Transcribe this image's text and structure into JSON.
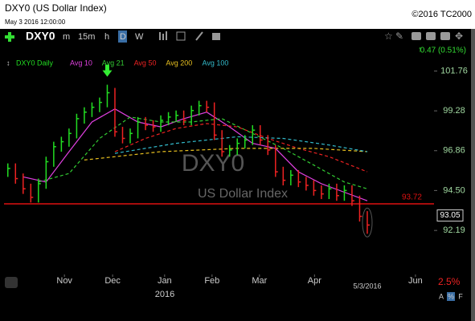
{
  "chart_data": {
    "type": "ohlc",
    "title": "DXY0 (US Dollar Index)",
    "copyright": "©2016 TC2000",
    "timestamp": "May 3 2016 12:00:00",
    "symbol": "DXY0",
    "timeframes": [
      "m",
      "15m",
      "h",
      "D",
      "W"
    ],
    "change": "0.47 (0.51%)",
    "watermark_symbol": "DXY0",
    "watermark_name": "US Dollar Index",
    "price_series": {
      "name": "DXY0 Daily",
      "up_color": "#22dd22",
      "down_color": "#ee2222",
      "high": [
        96.1,
        96.1,
        95.5,
        94.9,
        95.2,
        96.5,
        97.4,
        97.7,
        98.2,
        99.1,
        99.5,
        99.8,
        100.1,
        100.9,
        100.7,
        98.3,
        98.2,
        98.9,
        98.9,
        98.7,
        99.0,
        99.2,
        99.3,
        99.3,
        99.6,
        99.9,
        99.9,
        99.8,
        98.1,
        97.2,
        97.6,
        97.8,
        98.4,
        98.4,
        97.8,
        97.2,
        95.9,
        95.7,
        95.7,
        95.3,
        95.1,
        94.8,
        94.9,
        94.9,
        94.8,
        94.8,
        94.2,
        93.3
      ],
      "low": [
        95.3,
        94.9,
        94.3,
        93.8,
        93.8,
        94.6,
        95.9,
        96.8,
        97.1,
        97.6,
        98.5,
        98.9,
        99.2,
        99.5,
        97.7,
        97.3,
        97.3,
        97.6,
        98.1,
        98.0,
        98.0,
        98.4,
        98.6,
        98.4,
        98.4,
        99.0,
        99.2,
        97.5,
        96.5,
        96.5,
        96.6,
        97.0,
        97.2,
        97.2,
        96.6,
        95.3,
        94.8,
        94.8,
        94.7,
        94.5,
        94.2,
        94.0,
        94.0,
        93.9,
        93.9,
        93.6,
        92.7,
        92.0
      ],
      "close": [
        95.8,
        95.2,
        94.6,
        94.1,
        94.9,
        96.2,
        97.1,
        97.4,
        97.9,
        98.8,
        99.2,
        99.5,
        99.8,
        100.4,
        98.0,
        97.6,
        97.9,
        98.6,
        98.4,
        98.3,
        98.7,
        98.9,
        99.0,
        98.7,
        99.3,
        99.6,
        99.5,
        97.8,
        96.8,
        96.9,
        97.3,
        97.5,
        98.1,
        97.5,
        96.9,
        95.6,
        95.1,
        95.4,
        95.0,
        94.8,
        94.5,
        94.3,
        94.6,
        94.2,
        94.5,
        93.9,
        93.0,
        92.5
      ]
    },
    "averages": [
      {
        "name": "Avg 10",
        "color": "#e040e0",
        "dash": false,
        "x": [
          2,
          5,
          8,
          11,
          14,
          17,
          20,
          23,
          26,
          29,
          32,
          35,
          38,
          41,
          44,
          47
        ],
        "values": [
          95.3,
          95.0,
          96.8,
          98.6,
          99.4,
          98.6,
          98.3,
          98.8,
          99.2,
          98.3,
          97.3,
          97.0,
          95.6,
          94.9,
          94.4,
          93.9
        ]
      },
      {
        "name": "Avg 21",
        "color": "#33cc33",
        "dash": true,
        "x": [
          4,
          8,
          12,
          16,
          20,
          24,
          28,
          32,
          36,
          40,
          44,
          47
        ],
        "values": [
          95.0,
          95.5,
          97.6,
          98.9,
          98.6,
          98.6,
          98.8,
          97.9,
          97.0,
          96.0,
          95.0,
          94.6
        ]
      },
      {
        "name": "Avg 50",
        "color": "#ee2222",
        "dash": true,
        "x": [
          14,
          18,
          22,
          26,
          30,
          34,
          38,
          42,
          47
        ],
        "values": [
          96.8,
          97.6,
          98.2,
          98.5,
          98.3,
          97.6,
          97.0,
          96.5,
          95.6
        ]
      },
      {
        "name": "Avg 200",
        "color": "#e8c020",
        "dash": true,
        "x": [
          10,
          20,
          30,
          40,
          47
        ],
        "values": [
          96.3,
          96.8,
          97.0,
          97.0,
          96.8
        ]
      },
      {
        "name": "Avg 100",
        "color": "#33bbcc",
        "dash": true,
        "x": [
          14,
          22,
          30,
          36,
          42,
          47
        ],
        "values": [
          96.7,
          97.3,
          97.7,
          97.6,
          97.2,
          96.8
        ]
      }
    ],
    "hline": {
      "value": 93.72,
      "color": "#dd1111"
    },
    "last_price": 93.05,
    "log_scale": true,
    "ylim": [
      89.8,
      102.7
    ],
    "yticks": [
      101.76,
      99.28,
      96.86,
      {
        "value": 94.5,
        "label": "94.50"
      },
      92.19
    ],
    "xlim": [
      -0.5,
      55.2
    ],
    "xticks": [
      {
        "value": 7.4,
        "label": "Nov"
      },
      {
        "value": 13.7,
        "label": "Dec"
      },
      {
        "value": 20.5,
        "label": "Jan"
      },
      {
        "value": 26.7,
        "label": "Feb"
      },
      {
        "value": 32.9,
        "label": "Mar"
      },
      {
        "value": 40.1,
        "label": "Apr"
      },
      {
        "value": 53.3,
        "label": "Jun"
      }
    ],
    "year_label": "2016",
    "date_label": "5/3/2016",
    "scale_pct": "2.5%",
    "footer_buttons": [
      "A",
      "%",
      "F"
    ]
  }
}
